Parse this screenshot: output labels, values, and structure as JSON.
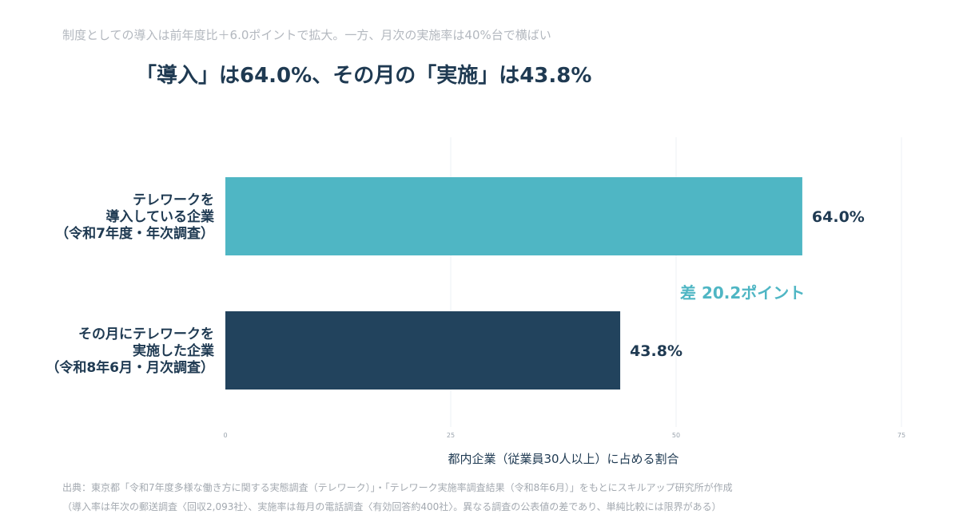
{
  "header": {
    "subtitle": "制度としての導入は前年度比＋6.0ポイントで拡大。一方、月次の実施率は40%台で横ばい",
    "title": "「導入」は64.0%、その月の「実施」は43.8%"
  },
  "chart_data": {
    "type": "bar",
    "orientation": "horizontal",
    "categories": [
      [
        "テレワークを",
        "導入している企業",
        "（令和7年度・年次調査）"
      ],
      [
        "その月にテレワークを",
        "実施した企業",
        "（令和8年6月・月次調査）"
      ]
    ],
    "values": [
      64.0,
      43.8
    ],
    "value_labels": [
      "64.0%",
      "43.8%"
    ],
    "bar_colors": [
      "#4fb6c4",
      "#22435d"
    ],
    "xlim": [
      0,
      75
    ],
    "xticks": [
      0,
      25,
      50,
      75
    ],
    "xlabel": "都内企業（従業員30人以上）に占める割合",
    "annotation": "差 20.2ポイント",
    "annotation_color": "#4fb6c4",
    "grid": "vertical"
  },
  "source": {
    "line1": "出典：東京都「令和7年度多様な働き方に関する実態調査（テレワーク）」・「テレワーク実施率調査結果（令和8年6月）」をもとにスキルアップ研究所が作成",
    "line2": "（導入率は年次の郵送調査〈回収2,093社〉、実施率は毎月の電話調査〈有効回答約400社〉。異なる調査の公表値の差であり、単純比較には限界がある）"
  }
}
